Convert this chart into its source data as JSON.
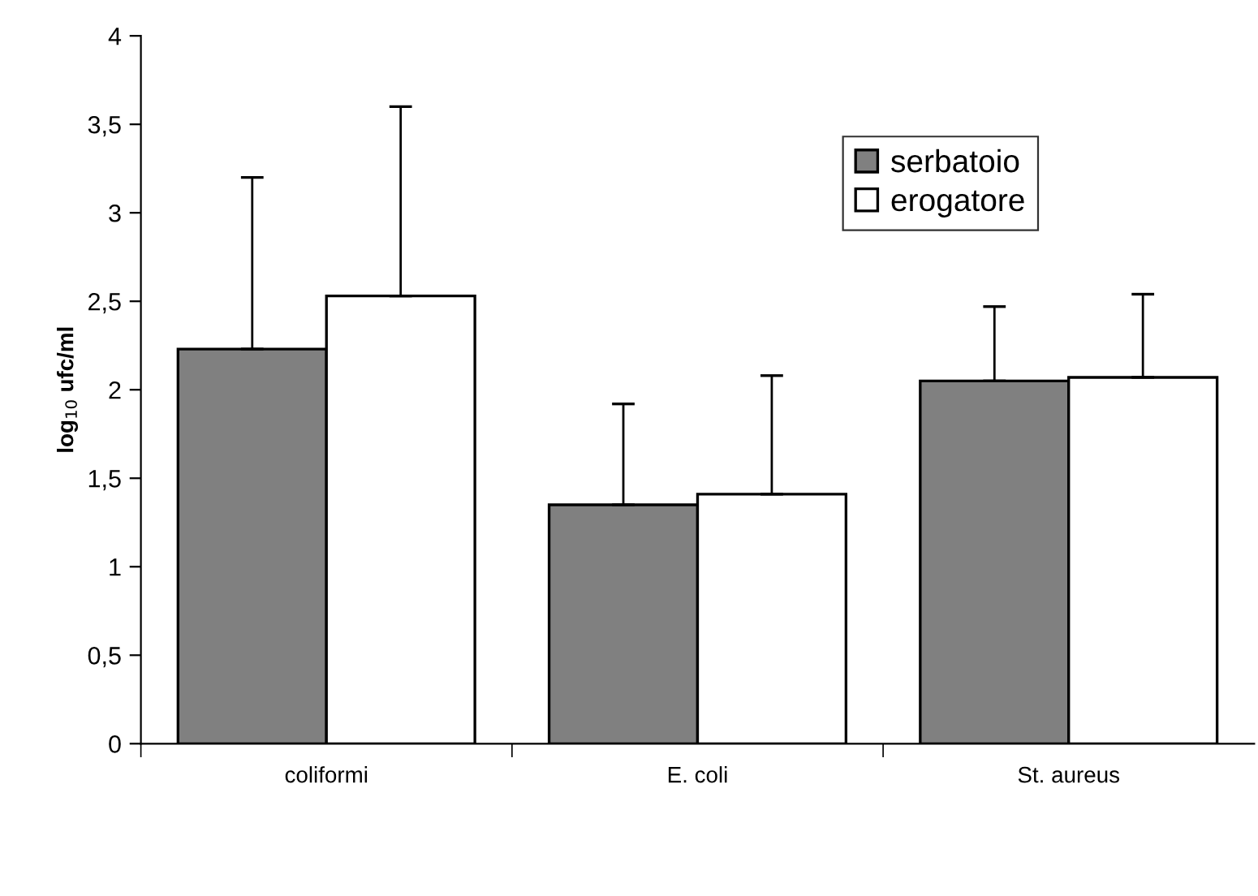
{
  "chart_data": {
    "type": "bar",
    "ylabel": "log$_{10}$ ufc/ml",
    "categories": [
      "coliformi",
      "E. coli",
      "St. aureus"
    ],
    "series": [
      {
        "name": "serbatoio",
        "color": "#808080",
        "values": [
          2.23,
          1.35,
          2.05
        ],
        "errors": [
          [
            2.23,
            3.2
          ],
          [
            1.35,
            1.92
          ],
          [
            2.05,
            2.47
          ]
        ]
      },
      {
        "name": "erogatore",
        "color": "#ffffff",
        "values": [
          2.53,
          1.41,
          2.07
        ],
        "errors": [
          [
            2.53,
            3.6
          ],
          [
            1.41,
            2.08
          ],
          [
            2.07,
            2.54
          ]
        ]
      }
    ],
    "ylim": [
      0,
      4
    ],
    "yticks": [
      0,
      {
        "value": 0.5,
        "label": "0,5"
      },
      1,
      {
        "value": 1.5,
        "label": "1,5"
      },
      2,
      {
        "value": 2.5,
        "label": "2,5"
      },
      3,
      {
        "value": 3.5,
        "label": "3,5"
      },
      4
    ],
    "grid": false,
    "legend": "top right"
  }
}
